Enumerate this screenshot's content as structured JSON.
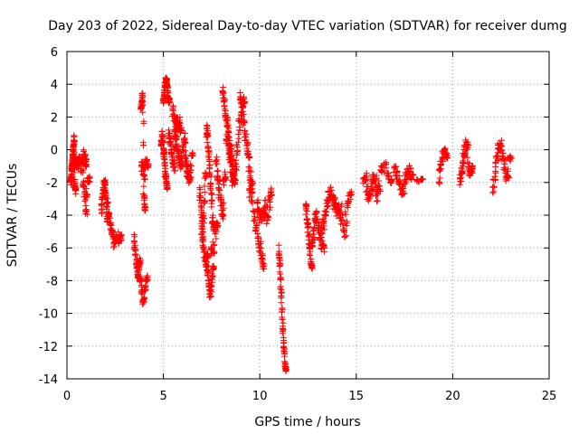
{
  "chart_data": {
    "type": "scatter",
    "title": "Day 203 of 2022, Sidereal Day-to-day VTEC variation (SDTVAR) for receiver dumg",
    "xlabel": "GPS time / hours",
    "ylabel": "SDTVAR / TECUs",
    "xlim": [
      0,
      25
    ],
    "ylim": [
      -14,
      6
    ],
    "xticks": [
      0,
      5,
      10,
      15,
      20,
      25
    ],
    "yticks": [
      6,
      4,
      2,
      0,
      -2,
      -4,
      -6,
      -8,
      -10,
      -12,
      -14
    ],
    "grid": true,
    "marker": "+",
    "color": "#ff0000",
    "series": [
      {
        "name": "SDTVAR",
        "segments": [
          {
            "t0": 0.2,
            "t1": 0.45,
            "v": [
              -2.0,
              -1.8,
              -1.5,
              -1.2,
              -0.9,
              -0.6,
              -0.3,
              0.0,
              0.4,
              0.8,
              -1.9,
              -2.2,
              -2.5
            ],
            "noise": 0.4
          },
          {
            "t0": 0.45,
            "t1": 1.0,
            "v": [
              -0.6,
              -0.8,
              -1.0,
              -0.7,
              -0.4,
              -0.9,
              -1.2,
              -0.5,
              -0.2,
              -0.8
            ],
            "noise": 0.5
          },
          {
            "t0": 0.85,
            "t1": 1.15,
            "v": [
              -2.0,
              -2.3,
              -3.0,
              -4.0,
              -2.2,
              -1.8
            ],
            "noise": 0.4
          },
          {
            "t0": 1.8,
            "t1": 2.1,
            "v": [
              -3.8,
              -3.2,
              -2.6,
              -2.2,
              -1.9,
              -2.5,
              -3.0,
              -4.3
            ],
            "noise": 0.4
          },
          {
            "t0": 2.1,
            "t1": 2.8,
            "v": [
              -3.0,
              -3.6,
              -4.2,
              -4.8,
              -5.3,
              -5.8,
              -5.5,
              -5.2,
              -5.6,
              -5.4
            ],
            "noise": 0.4
          },
          {
            "t0": 3.5,
            "t1": 3.8,
            "v": [
              -5.3,
              -6.0,
              -6.6,
              -7.2,
              -7.7,
              -7.4,
              -6.8
            ],
            "noise": 0.4
          },
          {
            "t0": 3.8,
            "t1": 4.15,
            "v": [
              -7.8,
              -8.2,
              -8.8,
              -9.4,
              -8.5,
              -7.9
            ],
            "noise": 0.4
          },
          {
            "t0": 3.85,
            "t1": 4.05,
            "v": [
              2.4,
              2.8,
              3.4,
              2.2,
              -2.8,
              -3.6
            ],
            "noise": 0.3
          },
          {
            "t0": 3.9,
            "t1": 4.2,
            "v": [
              -0.8,
              -1.2,
              -1.8,
              -0.5,
              -1.0
            ],
            "noise": 0.4
          },
          {
            "t0": 4.9,
            "t1": 5.2,
            "v": [
              0.2,
              0.6,
              1.0,
              0.4,
              -0.3,
              -0.8,
              -1.5,
              -2.0,
              -2.2
            ],
            "noise": 0.5
          },
          {
            "t0": 5.0,
            "t1": 5.3,
            "v": [
              2.8,
              3.2,
              3.6,
              4.0,
              4.3,
              3.8,
              3.5,
              3.0
            ],
            "noise": 0.3
          },
          {
            "t0": 5.3,
            "t1": 5.7,
            "v": [
              1.0,
              0.6,
              0.2,
              -0.3,
              -0.8,
              -1.2,
              0.4,
              1.4
            ],
            "noise": 0.5
          },
          {
            "t0": 5.5,
            "t1": 5.9,
            "v": [
              2.6,
              2.2,
              1.8,
              1.5,
              1.9,
              1.2
            ],
            "noise": 0.4
          },
          {
            "t0": 5.6,
            "t1": 6.3,
            "v": [
              1.0,
              0.6,
              0.2,
              -0.2,
              -0.6,
              -1.0,
              -0.4,
              0.3,
              0.8,
              -1.2,
              -1.6
            ],
            "noise": 0.5
          },
          {
            "t0": 6.2,
            "t1": 6.5,
            "v": [
              -0.5,
              -1.0,
              -1.6,
              -2.0,
              -0.2
            ],
            "noise": 0.4
          },
          {
            "t0": 6.9,
            "t1": 7.2,
            "v": [
              -2.5,
              -3.0,
              -4.0,
              -4.8,
              -3.5,
              -1.5
            ],
            "noise": 0.5
          },
          {
            "t0": 7.0,
            "t1": 7.3,
            "v": [
              -4.6,
              -5.4,
              -6.0,
              -6.7,
              -7.2,
              -6.5
            ],
            "noise": 0.4
          },
          {
            "t0": 7.3,
            "t1": 7.6,
            "v": [
              -7.0,
              -7.8,
              -8.4,
              -9.0,
              -8.0,
              -7.2
            ],
            "noise": 0.4
          },
          {
            "t0": 7.25,
            "t1": 7.6,
            "v": [
              0.8,
              1.5,
              0.2,
              -0.5,
              -1.5,
              -2.5,
              -3.5,
              -4.8
            ],
            "noise": 0.5
          },
          {
            "t0": 7.5,
            "t1": 7.8,
            "v": [
              -5.8,
              -6.5,
              -5.4,
              -4.6
            ],
            "noise": 0.4
          },
          {
            "t0": 7.75,
            "t1": 8.2,
            "v": [
              -0.5,
              -1.2,
              -2.0,
              -2.8,
              -3.5,
              -4.2,
              -1.6
            ],
            "noise": 0.5
          },
          {
            "t0": 8.1,
            "t1": 8.7,
            "v": [
              3.8,
              3.2,
              2.6,
              2.0,
              1.4,
              0.8,
              0.2,
              -0.5,
              -1.2,
              -2.0
            ],
            "noise": 0.5
          },
          {
            "t0": 8.3,
            "t1": 9.2,
            "v": [
              1.0,
              0.4,
              -0.4,
              -1.2,
              -2.0,
              -1.4,
              -0.6,
              0.6,
              1.6,
              2.4,
              3.0
            ],
            "noise": 0.6
          },
          {
            "t0": 9.0,
            "t1": 9.6,
            "v": [
              3.5,
              2.8,
              2.0,
              1.2,
              0.4,
              -0.4,
              -1.3,
              -2.2
            ],
            "noise": 0.6
          },
          {
            "t0": 9.5,
            "t1": 10.2,
            "v": [
              -2.0,
              -2.8,
              -3.5,
              -4.3,
              -5.0,
              -5.6,
              -6.2,
              -7.0
            ],
            "noise": 0.6
          },
          {
            "t0": 9.9,
            "t1": 10.6,
            "v": [
              -3.0,
              -3.8,
              -4.4,
              -3.6,
              -4.2,
              -3.0,
              -4.6,
              -2.6
            ],
            "noise": 0.5
          },
          {
            "t0": 11.0,
            "t1": 11.35,
            "v": [
              -5.8,
              -6.6,
              -7.5,
              -8.5,
              -9.5,
              -10.5,
              -11.4,
              -12.2,
              -12.9,
              -13.4
            ],
            "noise": 0.3
          },
          {
            "t0": 12.4,
            "t1": 12.7,
            "v": [
              -3.2,
              -3.8,
              -4.5,
              -5.2,
              -5.9,
              -6.6,
              -7.1
            ],
            "noise": 0.4
          },
          {
            "t0": 12.7,
            "t1": 13.3,
            "v": [
              -6.2,
              -5.4,
              -4.6,
              -3.9,
              -4.5,
              -5.0,
              -5.6,
              -6.0
            ],
            "noise": 0.5
          },
          {
            "t0": 13.2,
            "t1": 13.9,
            "v": [
              -5.5,
              -4.8,
              -4.2,
              -3.6,
              -3.0,
              -2.4,
              -2.8,
              -3.4
            ],
            "noise": 0.5
          },
          {
            "t0": 13.9,
            "t1": 14.7,
            "v": [
              -3.0,
              -3.6,
              -4.0,
              -3.5,
              -4.6,
              -5.2,
              -3.8,
              -2.8
            ],
            "noise": 0.5
          },
          {
            "t0": 15.4,
            "t1": 16.3,
            "v": [
              -2.0,
              -1.6,
              -2.4,
              -3.0,
              -2.6,
              -1.8,
              -1.5,
              -3.2,
              -2.4,
              -1.2
            ],
            "noise": 0.5
          },
          {
            "t0": 16.5,
            "t1": 16.8,
            "v": [
              -0.8,
              -1.3,
              -1.9
            ],
            "noise": 0.3
          },
          {
            "t0": 17.0,
            "t1": 17.9,
            "v": [
              -1.0,
              -1.4,
              -1.8,
              -2.2,
              -2.6,
              -2.0,
              -1.5,
              -1.1,
              -1.7
            ],
            "noise": 0.5
          },
          {
            "t0": 18.2,
            "t1": 18.4,
            "v": [
              -2.0,
              -1.8
            ],
            "noise": 0.2
          },
          {
            "t0": 19.3,
            "t1": 19.7,
            "v": [
              -2.2,
              -1.2,
              -0.6,
              0.1,
              -0.4
            ],
            "noise": 0.4
          },
          {
            "t0": 20.4,
            "t1": 21.0,
            "v": [
              -2.0,
              -1.5,
              -1.0,
              -0.4,
              0.2,
              0.6,
              -0.8,
              -1.6,
              -1.2
            ],
            "noise": 0.5
          },
          {
            "t0": 22.1,
            "t1": 23.0,
            "v": [
              -2.5,
              -1.8,
              -0.6,
              -0.2,
              0.4,
              0.2,
              -0.8,
              -1.4,
              -1.9,
              -0.5
            ],
            "noise": 0.5
          }
        ]
      }
    ]
  }
}
